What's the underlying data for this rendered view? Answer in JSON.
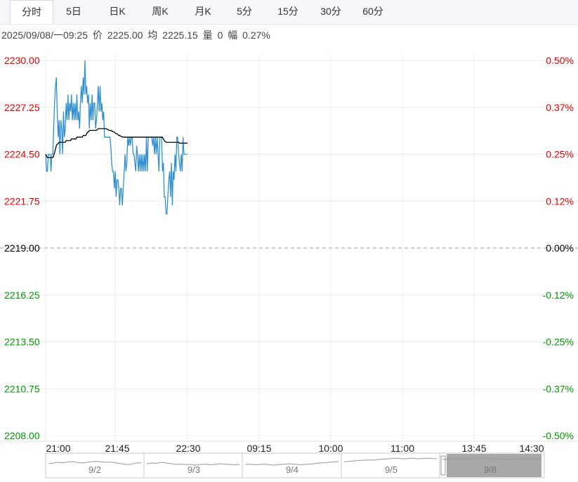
{
  "tabs": [
    {
      "label": "分时",
      "active": true
    },
    {
      "label": "5日"
    },
    {
      "label": "日K"
    },
    {
      "label": "周K"
    },
    {
      "label": "月K"
    },
    {
      "label": "5分"
    },
    {
      "label": "15分"
    },
    {
      "label": "30分"
    },
    {
      "label": "60分"
    }
  ],
  "info": {
    "datetime": "2025/09/08/一09:25",
    "price_label": "价",
    "price": "2225.00",
    "avg_label": "均",
    "avg": "2225.15",
    "vol_label": "量",
    "vol": "0",
    "amp_label": "幅",
    "amp": "0.27%"
  },
  "chart_data": {
    "type": "line",
    "title": "",
    "base_price": 2219.0,
    "ylim": [
      2208.0,
      2230.0
    ],
    "y_ticks": [
      "2230.00",
      "2227.25",
      "2224.50",
      "2221.75",
      "2219.00",
      "2216.25",
      "2213.50",
      "2210.75",
      "2208.00"
    ],
    "pct_ticks": [
      "0.50%",
      "0.37%",
      "0.25%",
      "0.12%",
      "0.00%",
      "-0.12%",
      "-0.25%",
      "-0.37%",
      "-0.50%"
    ],
    "x_ticks": [
      "21:00",
      "21:45",
      "22:30",
      "09:15",
      "10:00",
      "11:00",
      "13:45",
      "14:30"
    ],
    "colors": {
      "up": "#e60000",
      "down": "#009900",
      "flat": "#000000",
      "price_line": "#2f8fd0",
      "avg_line": "#000000"
    },
    "series": [
      {
        "key": "price",
        "values": [
          2224.5,
          2223.5,
          2223.5,
          2224.5,
          2224.5,
          2224.5,
          2223.5,
          2224.5,
          2224.5,
          2226.0,
          2227.5,
          2228.5,
          2229.0,
          2227.0,
          2225.5,
          2226.5,
          2224.5,
          2226.5,
          2226.0,
          2224.5,
          2227.0,
          2225.5,
          2226.0,
          2227.5,
          2226.5,
          2228.0,
          2226.5,
          2227.5,
          2227.0,
          2228.0,
          2226.5,
          2227.5,
          2226.5,
          2227.5,
          2226.5,
          2228.0,
          2226.5,
          2227.0,
          2226.0,
          2227.5,
          2228.5,
          2227.5,
          2229.0,
          2228.0,
          2230.0,
          2228.0,
          2228.5,
          2227.5,
          2228.0,
          2226.0,
          2227.5,
          2226.5,
          2228.0,
          2226.5,
          2227.5,
          2227.5,
          2226.0,
          2226.5,
          2227.5,
          2228.5,
          2227.0,
          2228.5,
          2227.0,
          2227.5,
          2226.5,
          2227.0,
          2225.5,
          2225.5,
          2225.5,
          2225.5,
          2225.5,
          2225.5,
          2225.5,
          2225.0,
          2224.0,
          2223.5,
          2223.5,
          2222.5,
          2223.5,
          2222.0,
          2223.0,
          2223.0,
          2222.5,
          2221.5,
          2222.5,
          2222.5,
          2221.5,
          2222.5,
          2223.5,
          2224.5,
          2223.5,
          2224.0,
          2225.5,
          2225.0,
          2225.5,
          2225.0,
          2225.5,
          2225.5,
          2224.5,
          2224.5,
          2224.0,
          2223.5,
          2225.0,
          2224.5,
          2223.5,
          2224.5,
          2223.5,
          2224.5,
          2223.5,
          2224.5,
          2223.5,
          2224.5,
          2223.5,
          2225.5,
          2223.5,
          2225.5,
          2225.5,
          2225.5,
          2225.5,
          2225.5,
          2225.0,
          2225.5,
          2224.5,
          2225.5,
          2224.5,
          2225.5,
          2224.5,
          2223.5,
          2225.5,
          2225.5,
          2225.5,
          2223.5,
          2224.0,
          2222.0,
          2222.0,
          2221.0,
          2221.0,
          2222.0,
          2223.0,
          2223.5,
          2222.0,
          2224.0,
          2221.5,
          2223.5,
          2223.0,
          2224.5,
          2223.5,
          2225.5,
          2225.5,
          2224.5,
          2224.0,
          2223.5,
          2224.5,
          2223.5,
          2225.5,
          2224.5,
          2224.5,
          2224.5,
          2224.5,
          2224.5
        ]
      },
      {
        "key": "avg",
        "values": [
          2224.5,
          2224.4,
          2224.3,
          2224.3,
          2224.3,
          2224.3,
          2224.3,
          2224.3,
          2224.3,
          2224.4,
          2224.6,
          2224.8,
          2225.0,
          2225.1,
          2225.1,
          2225.2,
          2225.2,
          2225.2,
          2225.2,
          2225.2,
          2225.2,
          2225.2,
          2225.2,
          2225.3,
          2225.3,
          2225.3,
          2225.3,
          2225.3,
          2225.3,
          2225.4,
          2225.4,
          2225.4,
          2225.4,
          2225.4,
          2225.4,
          2225.5,
          2225.5,
          2225.5,
          2225.5,
          2225.5,
          2225.5,
          2225.5,
          2225.6,
          2225.6,
          2225.6,
          2225.6,
          2225.7,
          2225.8,
          2225.8,
          2225.9,
          2225.9,
          2225.9,
          2225.9,
          2225.9,
          2225.9,
          2225.9,
          2225.9,
          2225.9,
          2225.95,
          2226.0,
          2226.0,
          2226.0,
          2226.0,
          2226.0,
          2226.0,
          2226.0,
          2226.0,
          2226.0,
          2226.0,
          2225.95,
          2225.95,
          2225.9,
          2225.9,
          2225.9,
          2225.85,
          2225.85,
          2225.8,
          2225.8,
          2225.75,
          2225.7,
          2225.7,
          2225.65,
          2225.6,
          2225.6,
          2225.55,
          2225.55,
          2225.5,
          2225.5,
          2225.5,
          2225.5,
          2225.5,
          2225.5,
          2225.5,
          2225.5,
          2225.5,
          2225.5,
          2225.5,
          2225.5,
          2225.5,
          2225.5,
          2225.5,
          2225.5,
          2225.5,
          2225.5,
          2225.5,
          2225.5,
          2225.5,
          2225.5,
          2225.5,
          2225.5,
          2225.5,
          2225.5,
          2225.5,
          2225.5,
          2225.5,
          2225.5,
          2225.5,
          2225.5,
          2225.5,
          2225.5,
          2225.5,
          2225.5,
          2225.5,
          2225.5,
          2225.5,
          2225.5,
          2225.5,
          2225.5,
          2225.5,
          2225.5,
          2225.5,
          2225.5,
          2225.4,
          2225.3,
          2225.25,
          2225.2,
          2225.2,
          2225.2,
          2225.2,
          2225.2,
          2225.2,
          2225.2,
          2225.2,
          2225.2,
          2225.2,
          2225.2,
          2225.2,
          2225.2,
          2225.2,
          2225.2,
          2225.15,
          2225.15,
          2225.15,
          2225.15,
          2225.15,
          2225.15,
          2225.15,
          2225.15,
          2225.15,
          2225.15
        ]
      }
    ],
    "grid": true,
    "total_minutes": 555
  },
  "navigator": {
    "labels": [
      "9/2",
      "9/3",
      "9/4",
      "9/5",
      "9/8"
    ],
    "selected": "9/8",
    "trend": [
      [
        0.55,
        0.5,
        0.45,
        0.48,
        0.42,
        0.4,
        0.46,
        0.5,
        0.44,
        0.4,
        0.38,
        0.42,
        0.45,
        0.43,
        0.5,
        0.55,
        0.6,
        0.58,
        0.5,
        0.48
      ],
      [
        0.55,
        0.5,
        0.52,
        0.45,
        0.5,
        0.55,
        0.6,
        0.58,
        0.62,
        0.6,
        0.65,
        0.6,
        0.58,
        0.62,
        0.6,
        0.55,
        0.58,
        0.6,
        0.62,
        0.6
      ],
      [
        0.6,
        0.58,
        0.62,
        0.6,
        0.58,
        0.62,
        0.65,
        0.6,
        0.58,
        0.55,
        0.58,
        0.62,
        0.6,
        0.58,
        0.55,
        0.5,
        0.48,
        0.45,
        0.42,
        0.4
      ],
      [
        0.4,
        0.38,
        0.35,
        0.32,
        0.3,
        0.28,
        0.3,
        0.25,
        0.22,
        0.2,
        0.18,
        0.15,
        0.2,
        0.18,
        0.15,
        0.2,
        0.18,
        0.15,
        0.18,
        0.2
      ],
      [
        0.25,
        0.2,
        0.22,
        0.18,
        0.15,
        0.2,
        0.25,
        0.22,
        0.2,
        0.18
      ]
    ]
  }
}
